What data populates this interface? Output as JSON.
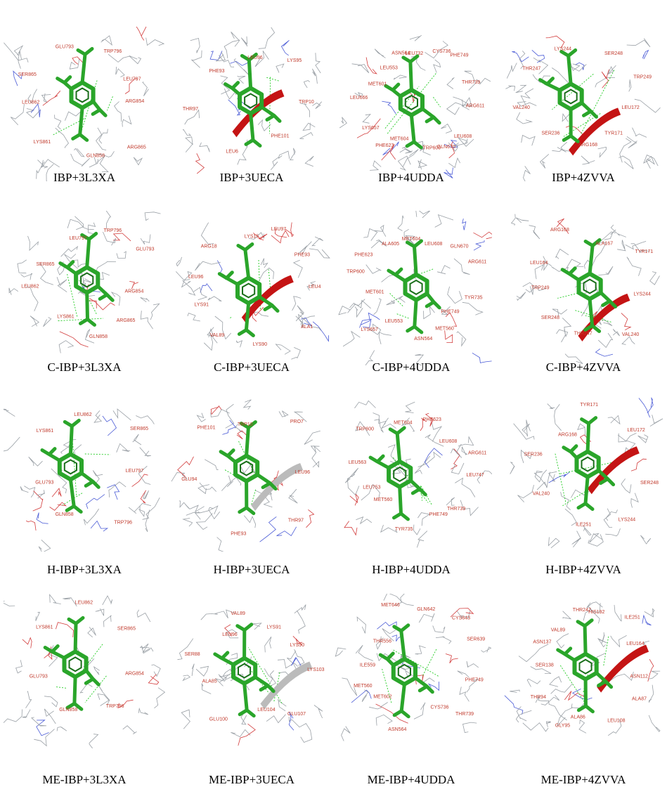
{
  "colors": {
    "ligand": "#2aa52a",
    "ligand_dark": "#1a6e1a",
    "residue_label": "#c0392b",
    "wire": "#9aa0a6",
    "hbond": "#22cc22",
    "helix": "#c41414"
  },
  "panels": [
    {
      "caption": "IBP+3L3XA",
      "residues": [
        "ARG854",
        "ARG865",
        "GLN858",
        "LYS861",
        "LEU862",
        "SER865",
        "GLU793",
        "TRP796",
        "LEU797"
      ]
    },
    {
      "caption": "IBP+3UECA",
      "residues": [
        "TRP10",
        "PHE101",
        "LEU6",
        "THR97",
        "PHE93",
        "LEU96",
        "LYS95"
      ]
    },
    {
      "caption": "IBP+4UDDA",
      "residues": [
        "ARG611",
        "LEU608",
        "GLN670",
        "TRP600",
        "MET604",
        "PHE623",
        "LYS657",
        "LEU666",
        "MET601",
        "LEU553",
        "ASN564",
        "LEU732",
        "CYS736",
        "PHE749",
        "THR739"
      ]
    },
    {
      "caption": "IBP+4ZVVA",
      "residues": [
        "LEU172",
        "TYR171",
        "ARG168",
        "SER236",
        "VAL240",
        "THR247",
        "LYS244",
        "SER248",
        "TRP249"
      ]
    },
    {
      "caption": "C-IBP+3L3XA",
      "residues": [
        "ARG854",
        "ARG865",
        "GLN858",
        "LYS861",
        "LEU862",
        "SER865",
        "LEU797",
        "TRP796",
        "GLU793"
      ]
    },
    {
      "caption": "C-IBP+3UECA",
      "residues": [
        "LEU4",
        "ALA1",
        "LYS90",
        "VAL89",
        "LYS91",
        "LEU96",
        "ARG18",
        "LYS15",
        "LEU97",
        "PHE93"
      ]
    },
    {
      "caption": "C-IBP+4UDDA",
      "residues": [
        "TYR735",
        "PHE749",
        "MET560",
        "ASN564",
        "LEU553",
        "LYS657",
        "MET601",
        "TRP600",
        "PHE623",
        "ALA605",
        "MET604",
        "LEU608",
        "GLN670",
        "ARG611"
      ]
    },
    {
      "caption": "C-IBP+4ZVVA",
      "residues": [
        "LYS244",
        "VAL240",
        "THR247",
        "SER248",
        "TRP249",
        "LEU164",
        "ARG168",
        "ALA167",
        "TYR171"
      ]
    },
    {
      "caption": "H-IBP+3L3XA",
      "residues": [
        "LEU797",
        "TRP796",
        "GLN858",
        "GLU793",
        "LYS861",
        "LEU862",
        "SER865"
      ]
    },
    {
      "caption": "H-IBP+3UECA",
      "residues": [
        "LEU96",
        "THR97",
        "PHE93",
        "GLU94",
        "PHE101",
        "TRP10",
        "PRO7"
      ]
    },
    {
      "caption": "H-IBP+4UDDA",
      "residues": [
        "LEU747",
        "THR739",
        "PHE749",
        "TYR735",
        "MET560",
        "LEU753",
        "LEU563",
        "TRP600",
        "MET604",
        "PHE623",
        "LEU608",
        "ARG611"
      ]
    },
    {
      "caption": "H-IBP+4ZVVA",
      "residues": [
        "SER248",
        "LYS244",
        "ILE251",
        "VAL240",
        "SER236",
        "ARG168",
        "TYR171",
        "LEU172"
      ]
    },
    {
      "caption": "ME-IBP+3L3XA",
      "residues": [
        "ARG854",
        "TRP796",
        "GLN858",
        "GLU793",
        "LYS861",
        "LEU862",
        "SER865"
      ]
    },
    {
      "caption": "ME-IBP+3UECA",
      "residues": [
        "LYS103",
        "GLU107",
        "LEU104",
        "GLU100",
        "ALA85",
        "SER88",
        "LEU96",
        "VAL89",
        "LYS91",
        "LYS90"
      ]
    },
    {
      "caption": "ME-IBP+4UDDA",
      "residues": [
        "PHE749",
        "THR739",
        "CYS736",
        "ASN564",
        "MET602",
        "MET560",
        "ILE559",
        "THR556",
        "MET646",
        "GLN642",
        "CYS643",
        "SER639"
      ]
    },
    {
      "caption": "ME-IBP+4ZVVA",
      "residues": [
        "ASN112",
        "ALA87",
        "LEU108",
        "ALA86",
        "GLY95",
        "THR94",
        "SER138",
        "ASN137",
        "VAL89",
        "THR247",
        "HIS192",
        "ILE251",
        "LEU164"
      ]
    }
  ]
}
